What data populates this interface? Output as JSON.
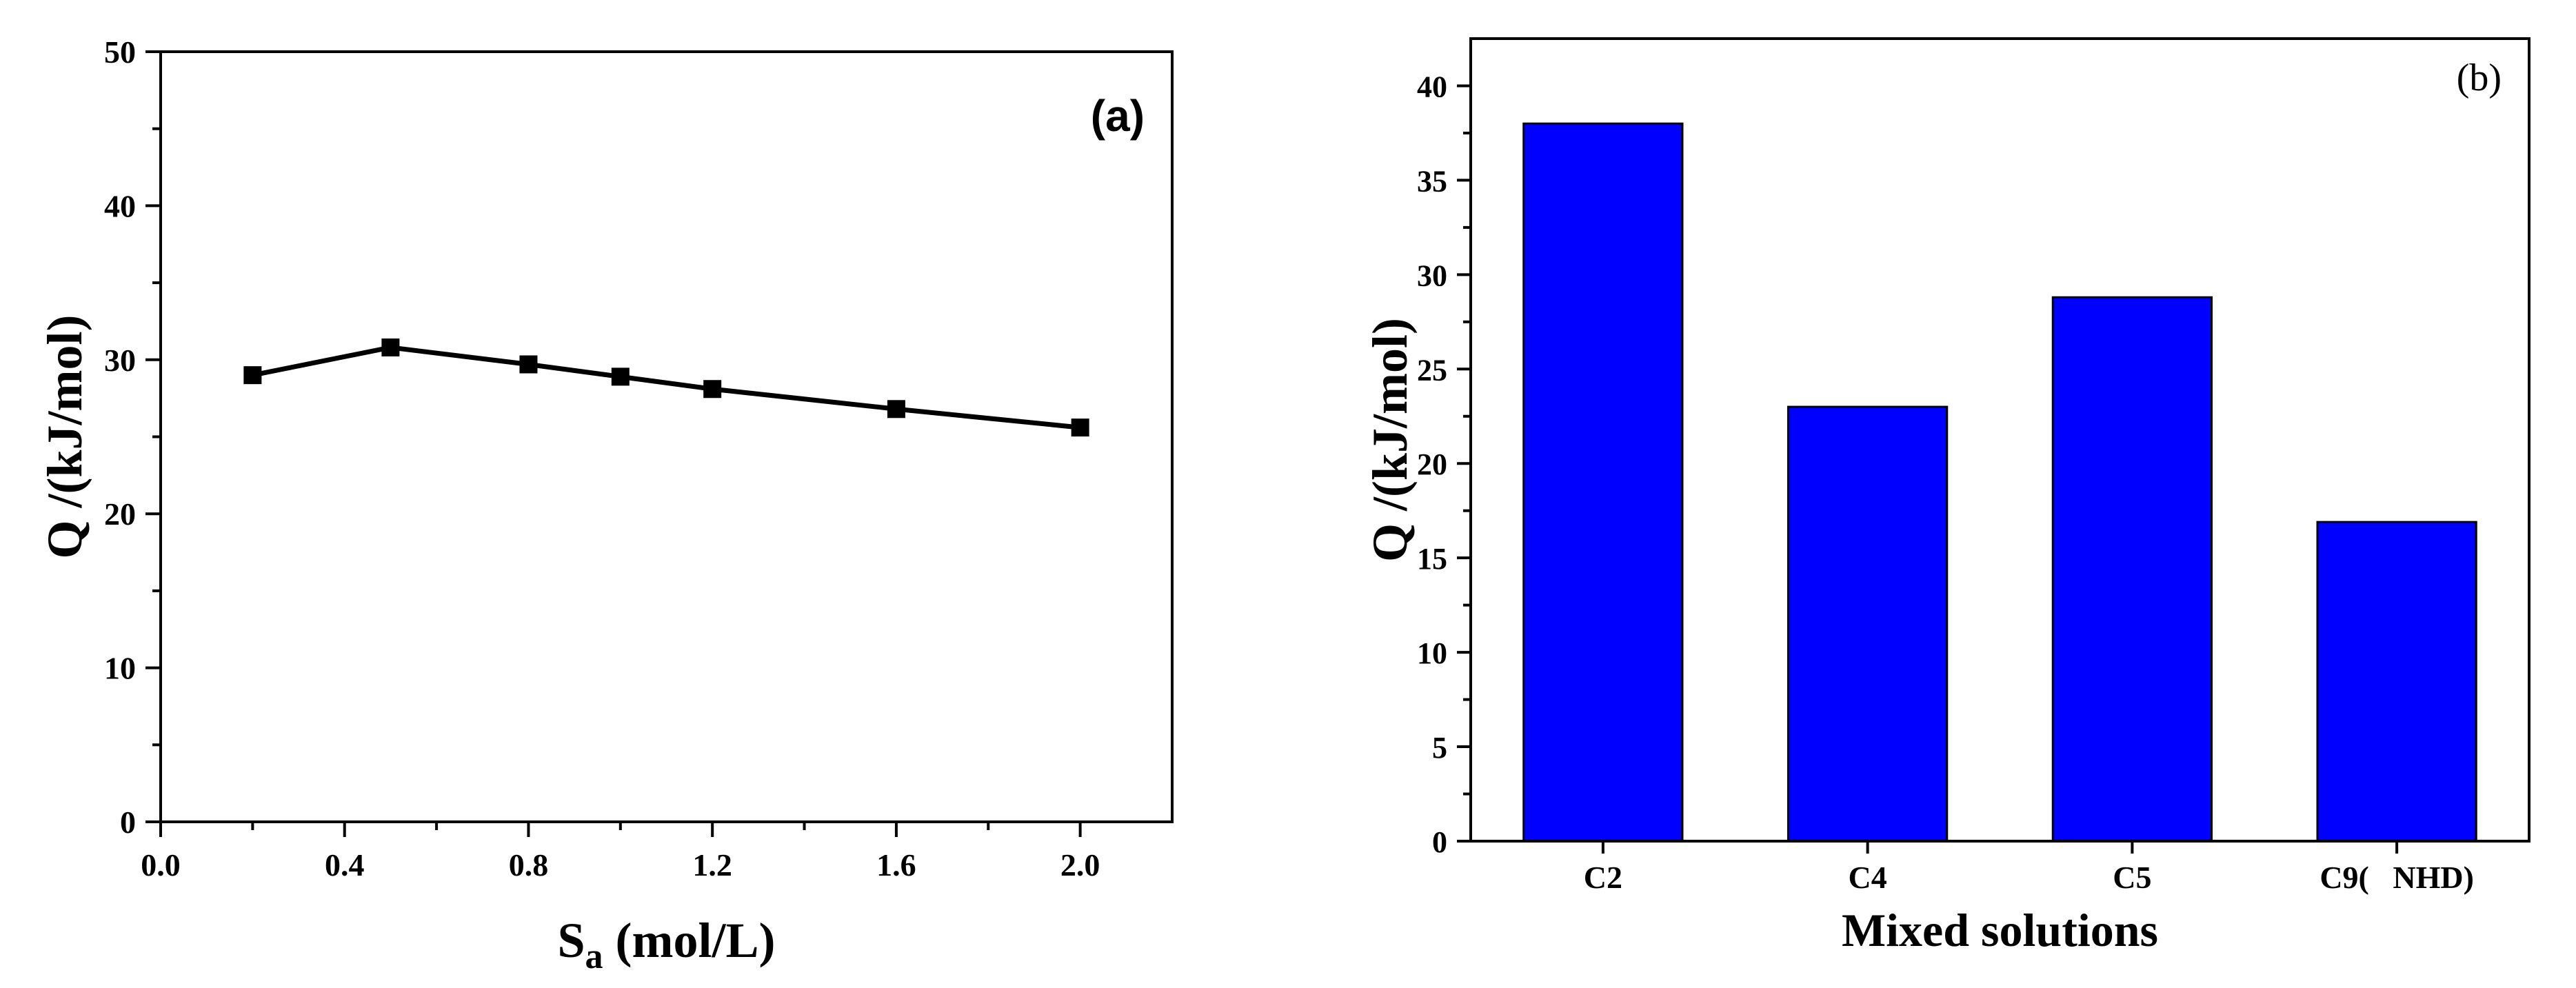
{
  "chart_data": [
    {
      "id": "a",
      "type": "line",
      "panel_label": "(a)",
      "xlabel_main": "S",
      "xlabel_sub": "a",
      "xlabel_rest": " (mol/L)",
      "ylabel": "Q /(kJ/mol)",
      "xlim": [
        0.0,
        2.2
      ],
      "ylim": [
        0,
        50
      ],
      "xticks": [
        {
          "v": 0.0,
          "label": "0.0"
        },
        {
          "v": 0.4,
          "label": "0.4"
        },
        {
          "v": 0.8,
          "label": "0.8"
        },
        {
          "v": 1.2,
          "label": "1.2"
        },
        {
          "v": 1.6,
          "label": "1.6"
        },
        {
          "v": 2.0,
          "label": "2.0"
        }
      ],
      "yticks": [
        {
          "v": 0,
          "label": "0"
        },
        {
          "v": 10,
          "label": "10"
        },
        {
          "v": 20,
          "label": "20"
        },
        {
          "v": 30,
          "label": "30"
        },
        {
          "v": 40,
          "label": "40"
        },
        {
          "v": 50,
          "label": "50"
        }
      ],
      "series": [
        {
          "name": "Q",
          "color": "#000000",
          "marker": "square",
          "x": [
            0.2,
            0.5,
            0.8,
            1.0,
            1.2,
            1.6,
            2.0
          ],
          "y": [
            29.0,
            30.8,
            29.7,
            28.9,
            28.1,
            26.8,
            25.6
          ]
        }
      ]
    },
    {
      "id": "b",
      "type": "bar",
      "panel_label": "(b)",
      "xlabel": "Mixed solutions",
      "ylabel": "Q /(kJ/mol)",
      "ylim": [
        0,
        42.5
      ],
      "bar_color": "#0000ff",
      "categories": [
        "C2",
        "C4",
        "C5",
        "C9(   NHD)"
      ],
      "values": [
        38.0,
        23.0,
        28.8,
        16.9
      ],
      "yticks": [
        {
          "v": 0,
          "label": "0"
        },
        {
          "v": 5,
          "label": "5"
        },
        {
          "v": 10,
          "label": "10"
        },
        {
          "v": 15,
          "label": "15"
        },
        {
          "v": 20,
          "label": "20"
        },
        {
          "v": 25,
          "label": "25"
        },
        {
          "v": 30,
          "label": "30"
        },
        {
          "v": 35,
          "label": "35"
        },
        {
          "v": 40,
          "label": "40"
        }
      ]
    }
  ]
}
